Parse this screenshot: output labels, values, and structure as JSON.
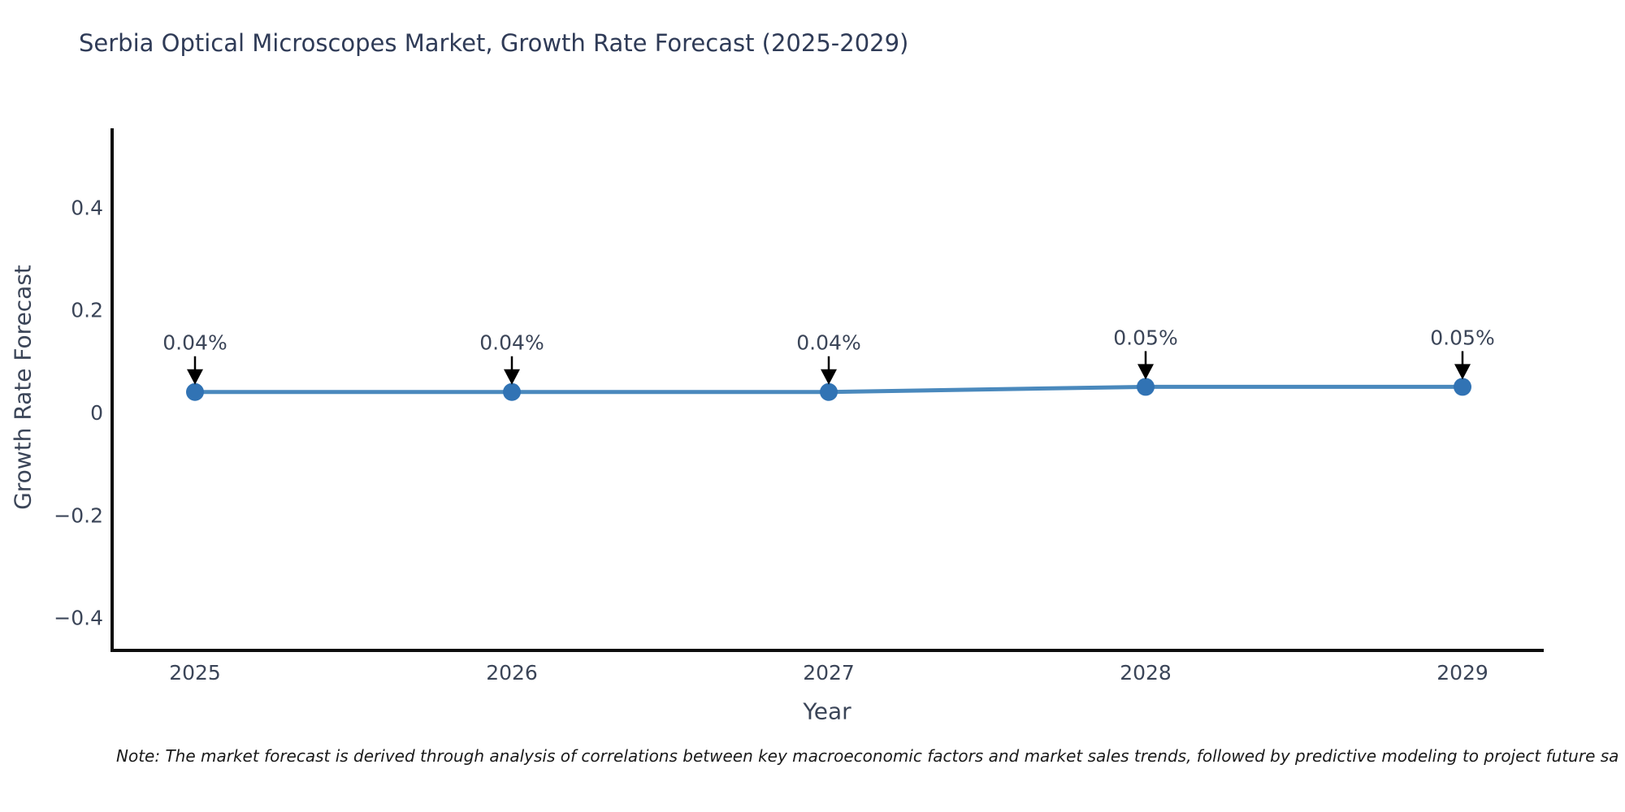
{
  "chart": {
    "title": "Serbia Optical Microscopes Market, Growth Rate Forecast (2025-2029)",
    "xlabel": "Year",
    "ylabel": "Growth Rate Forecast",
    "note": "Note: The market forecast is derived through analysis of correlations between key macroeconomic factors and market sales trends, followed by predictive modeling to project future sa"
  },
  "chart_data": {
    "type": "line",
    "title": "Serbia Optical Microscopes Market, Growth Rate Forecast (2025-2029)",
    "xlabel": "Year",
    "ylabel": "Growth Rate Forecast",
    "categories": [
      "2025",
      "2026",
      "2027",
      "2028",
      "2029"
    ],
    "values": [
      0.04,
      0.04,
      0.04,
      0.05,
      0.05
    ],
    "point_labels": [
      "0.04%",
      "0.04%",
      "0.04%",
      "0.05%",
      "0.05%"
    ],
    "yticks": [
      0.4,
      0.2,
      0,
      -0.2,
      -0.4
    ],
    "ytick_labels": [
      "0.4",
      "0.2",
      "0",
      "−0.2",
      "−0.4"
    ],
    "ylim": [
      -0.47,
      0.55
    ],
    "grid": false,
    "legend": false,
    "annotation_arrows": true,
    "colors": {
      "line": "#4a89bd",
      "marker": "#3173b4",
      "axis": "#0d0d0d",
      "title": "#2f3b57",
      "tick_label": "#3b4558",
      "annotation": "#3b4558",
      "arrow": "#000000",
      "note": "#1a1a1a",
      "background": "#ffffff"
    }
  }
}
